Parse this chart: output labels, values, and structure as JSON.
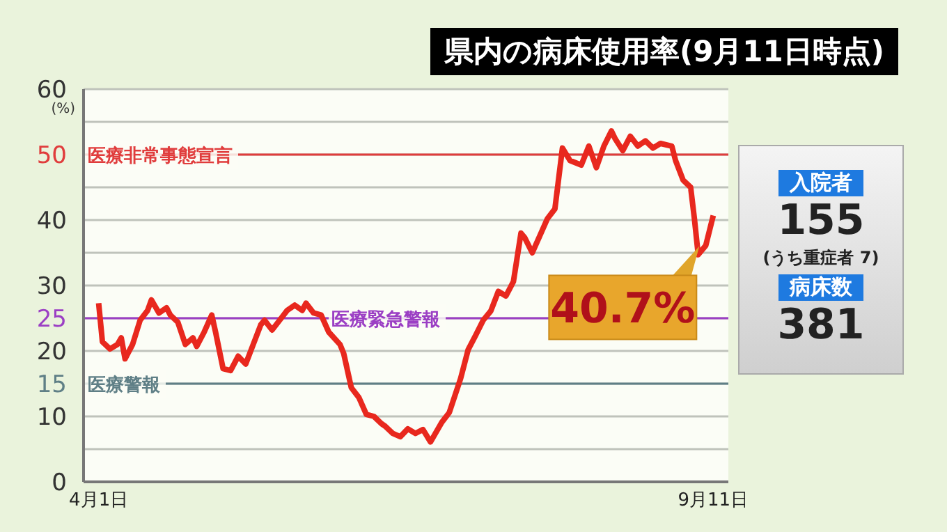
{
  "chart_data": {
    "type": "line",
    "title": "県内の病床使用率(9月11日時点)",
    "ylabel": "(%)",
    "x": [
      "--04-01",
      "--04-02",
      "--04-04",
      "--04-06",
      "--04-07",
      "--04-08",
      "--04-10",
      "--04-12",
      "--04-14",
      "--04-15",
      "--04-17",
      "--04-19",
      "--04-20",
      "--04-22",
      "--04-24",
      "--04-26",
      "--04-27",
      "--04-29",
      "--05-01",
      "--05-02",
      "--05-04",
      "--05-06",
      "--05-08",
      "--05-10",
      "--05-12",
      "--05-14",
      "--05-15",
      "--05-17",
      "--05-19",
      "--05-21",
      "--05-23",
      "--05-25",
      "--05-26",
      "--05-28",
      "--05-30",
      "--06-01",
      "--06-04",
      "--06-05",
      "--06-07",
      "--06-09",
      "--06-11",
      "--06-13",
      "--06-15",
      "--06-16",
      "--06-18",
      "--06-20",
      "--06-22",
      "--06-24",
      "--06-26",
      "--06-28",
      "--07-01",
      "--07-03",
      "--07-06",
      "--07-08",
      "--07-10",
      "--07-12",
      "--07-14",
      "--07-16",
      "--07-18",
      "--07-20",
      "--07-22",
      "--07-23",
      "--07-25",
      "--07-27",
      "--07-29",
      "--07-31",
      "--08-02",
      "--08-04",
      "--08-07",
      "--08-09",
      "--08-11",
      "--08-13",
      "--08-15",
      "--08-16",
      "--08-18",
      "--08-20",
      "--08-22",
      "--08-24",
      "--08-26",
      "--08-28",
      "--08-31",
      "--09-01",
      "--09-03",
      "--09-05",
      "--09-06",
      "--09-07",
      "--09-09",
      "--09-11"
    ],
    "series": [
      {
        "color": "#e8281e",
        "values": [
          27.3,
          21.4,
          20.3,
          21,
          22,
          18.8,
          21,
          24.7,
          26.2,
          27.8,
          25.8,
          26.6,
          25.5,
          24.4,
          21,
          22,
          20.7,
          22.9,
          25.5,
          22.9,
          17.3,
          17,
          19.2,
          18,
          21,
          24,
          24.7,
          23.2,
          24.7,
          26.2,
          27,
          26.2,
          27.3,
          25.8,
          25.5,
          22.9,
          21,
          19.6,
          14.4,
          12.9,
          10.3,
          10,
          8.9,
          8.5,
          7.4,
          6.9,
          8.1,
          7.4,
          8,
          6.1,
          9.1,
          10.6,
          15.8,
          20.2,
          22.4,
          24.7,
          26.1,
          29.1,
          28.4,
          30.6,
          38,
          37.3,
          35,
          37.6,
          40.2,
          41.7,
          51,
          49.1,
          48.4,
          51.3,
          48,
          51.3,
          53.6,
          52.4,
          50.6,
          52.8,
          51.3,
          52.1,
          51,
          51.7,
          51.3,
          49.1,
          46.1,
          45,
          40.2,
          34.7,
          36.1,
          40.7
        ]
      }
    ],
    "xlim": [
      "--03-28",
      "--09-15"
    ],
    "xticks": [
      {
        "value": "--04-01",
        "label": "4月1日"
      },
      {
        "value": "--09-11",
        "label": "9月11日"
      }
    ],
    "ylim": [
      0,
      60
    ],
    "yticks": [
      0,
      {
        "value": 5,
        "label": null
      },
      10,
      15,
      20,
      25,
      30,
      {
        "value": 35,
        "label": null
      },
      40,
      {
        "value": 45,
        "label": null
      },
      50,
      {
        "value": 55,
        "label": null
      },
      60
    ],
    "grid": "y",
    "marker": "none",
    "line_style": "solid",
    "ref_lines": [
      {
        "axis": "y",
        "value": 50,
        "label": "医療非常事態宣言",
        "color": "#e03c3c"
      },
      {
        "axis": "y",
        "value": 25,
        "label": "医療緊急警報",
        "color": "#9b3fc4"
      },
      {
        "axis": "y",
        "value": 15,
        "label": "医療警報",
        "color": "#5f7f86"
      }
    ],
    "annotations": [
      {
        "text": "40.7%",
        "x": "--09-11",
        "y": 40.7
      },
      "入院者",
      "155",
      "(うち重症者 7)",
      "病床数",
      "381"
    ]
  }
}
